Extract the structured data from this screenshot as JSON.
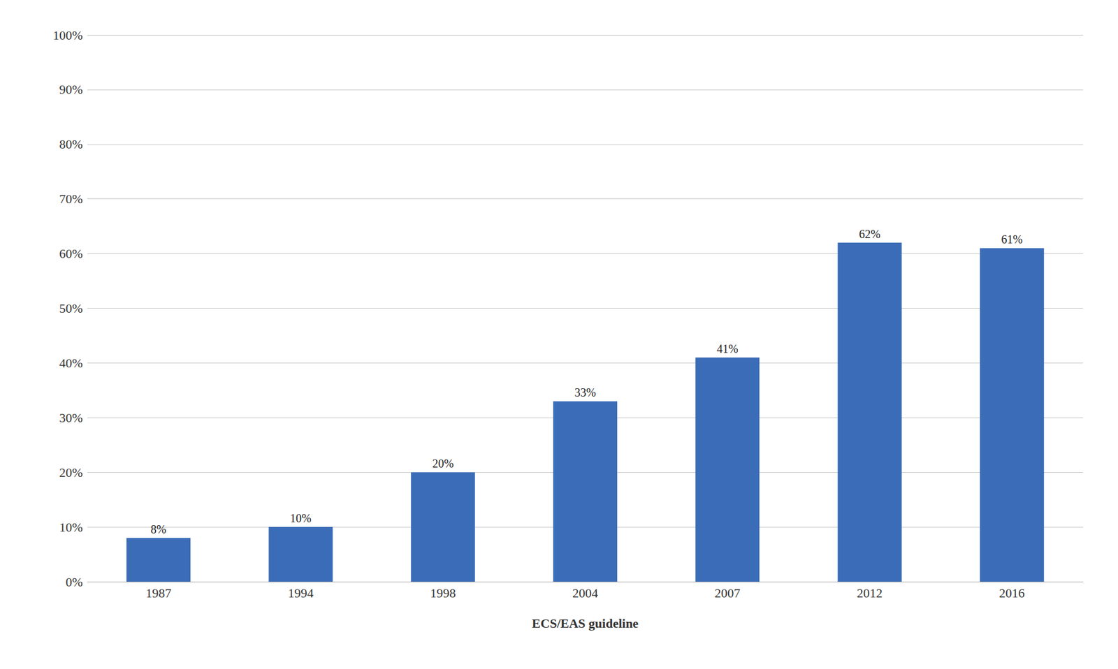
{
  "chart_data": {
    "type": "bar",
    "xlabel": "ECS/EAS guideline",
    "categories": [
      "1987",
      "1994",
      "1998",
      "2004",
      "2007",
      "2012",
      "2016"
    ],
    "values": [
      0.08,
      0.1,
      0.2,
      0.33,
      0.41,
      0.62,
      0.61
    ],
    "value_labels": [
      "8%",
      "10%",
      "20%",
      "33%",
      "41%",
      "62%",
      "61%"
    ],
    "color": "#3B6CB7",
    "ylim": [
      0,
      1.0
    ],
    "yticks": [
      {
        "value": 0.0,
        "label": "0%"
      },
      {
        "value": 0.1,
        "label": "10%"
      },
      {
        "value": 0.2,
        "label": "20%"
      },
      {
        "value": 0.3,
        "label": "30%"
      },
      {
        "value": 0.4,
        "label": "40%"
      },
      {
        "value": 0.5,
        "label": "50%"
      },
      {
        "value": 0.6,
        "label": "60%"
      },
      {
        "value": 0.7,
        "label": "70%"
      },
      {
        "value": 0.8,
        "label": "80%"
      },
      {
        "value": 0.9,
        "label": "90%"
      },
      {
        "value": 1.0,
        "label": "100%"
      }
    ],
    "grid": true,
    "data_labels": true
  }
}
